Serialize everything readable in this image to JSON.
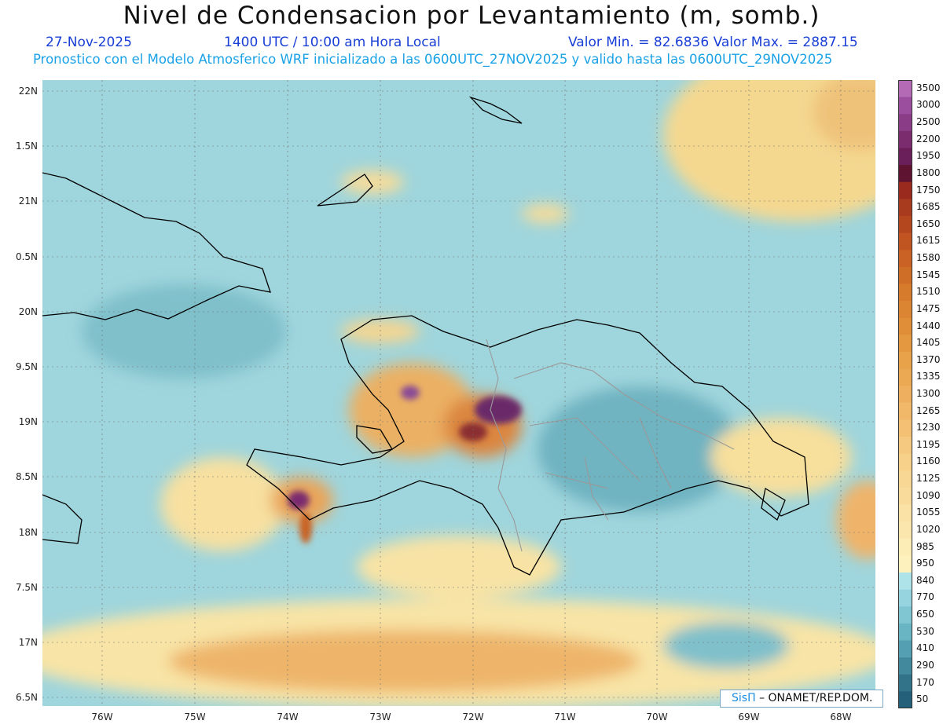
{
  "header": {
    "title": "Nivel de Condensacion por Levantamiento (m, somb.)",
    "date": "27-Nov-2025",
    "time": "1400 UTC / 10:00 am Hora Local",
    "min_max": "Valor Min. = 82.6836  Valor Max. = 2887.15",
    "forecast": "Pronostico con el Modelo Atmosferico WRF inicializado a las 0600UTC_27NOV2025 y valido hasta las  0600UTC_29NOV2025"
  },
  "axes": {
    "lat_labels": [
      "22N",
      "1.5N",
      "21N",
      "0.5N",
      "20N",
      "9.5N",
      "19N",
      "8.5N",
      "18N",
      "7.5N",
      "17N",
      "6.5N"
    ],
    "lon_labels": [
      "76W",
      "75W",
      "74W",
      "73W",
      "72W",
      "71W",
      "70W",
      "69W",
      "68W"
    ]
  },
  "legend": {
    "levels": [
      "3500",
      "3000",
      "2500",
      "2200",
      "1950",
      "1800",
      "1750",
      "1685",
      "1650",
      "1615",
      "1580",
      "1545",
      "1510",
      "1475",
      "1440",
      "1405",
      "1370",
      "1335",
      "1300",
      "1265",
      "1230",
      "1195",
      "1160",
      "1125",
      "1090",
      "1055",
      "1020",
      "985",
      "950",
      "840",
      "770",
      "650",
      "530",
      "410",
      "290",
      "170",
      "50"
    ],
    "colors": [
      "#b46ab4",
      "#9b4e9e",
      "#8a3c86",
      "#7a2c6e",
      "#6a1f5a",
      "#5e1430",
      "#9a2a1e",
      "#a83a1e",
      "#b5471f",
      "#c15522",
      "#c96224",
      "#cf6e27",
      "#d67a2b",
      "#db8431",
      "#e08e38",
      "#e49840",
      "#e8a24a",
      "#eba954",
      "#eeb05e",
      "#f1b869",
      "#f3c074",
      "#f5c97f",
      "#f7d089",
      "#f8d693",
      "#f9dc9c",
      "#fae2a6",
      "#fbe7ae",
      "#fcecb6",
      "#fdf1be",
      "#aee3ea",
      "#96d5df",
      "#7fc6d2",
      "#69b5c4",
      "#559fb2",
      "#43899e",
      "#33738a",
      "#246079"
    ]
  },
  "credit": {
    "logo_text": "SisΠ",
    "text": "– ONAMET/REP.DOM."
  }
}
